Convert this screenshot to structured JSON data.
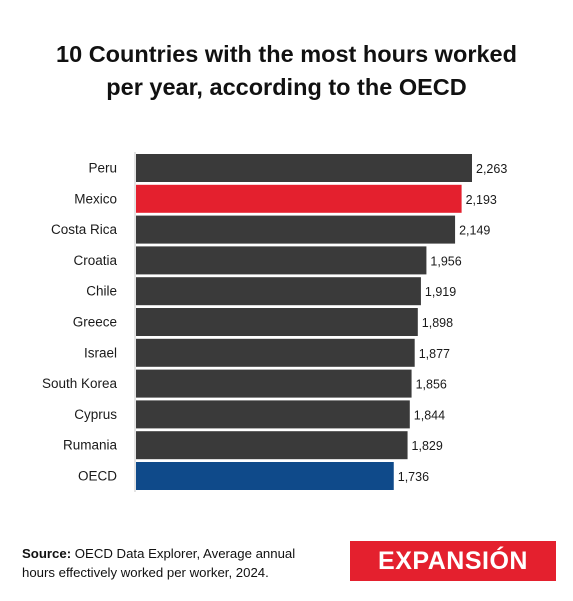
{
  "title_lines": [
    "10 Countries with the most hours worked",
    "per year, according to the OECD"
  ],
  "source": {
    "label": "Source:",
    "text": "OECD Data Explorer, Average annual",
    "text2": "hours effectively worked per worker, 2024."
  },
  "logo_text": "EXPANSIÓN",
  "colors": {
    "default": "#3a3a3a",
    "highlight": "#e4202e",
    "oecd": "#0f4a8a"
  },
  "chart_data": {
    "type": "bar",
    "orientation": "horizontal",
    "categories": [
      "Peru",
      "Mexico",
      "Costa Rica",
      "Croatia",
      "Chile",
      "Greece",
      "Israel",
      "South Korea",
      "Cyprus",
      "Rumania",
      "OECD"
    ],
    "values": [
      2263,
      2193,
      2149,
      1956,
      1919,
      1898,
      1877,
      1856,
      1844,
      1829,
      1736
    ],
    "value_labels": [
      "2,263",
      "2,193",
      "2,149",
      "1,956",
      "1,919",
      "1,898",
      "1,877",
      "1,856",
      "1,844",
      "1,829",
      "1,736"
    ],
    "bar_colors": [
      "default",
      "highlight",
      "default",
      "default",
      "default",
      "default",
      "default",
      "default",
      "default",
      "default",
      "oecd"
    ],
    "title": "10 Countries with the most hours worked per year, according to the OECD",
    "xlabel": "",
    "ylabel": "",
    "xlim": [
      0,
      2263
    ],
    "grid": false,
    "legend": "none"
  }
}
